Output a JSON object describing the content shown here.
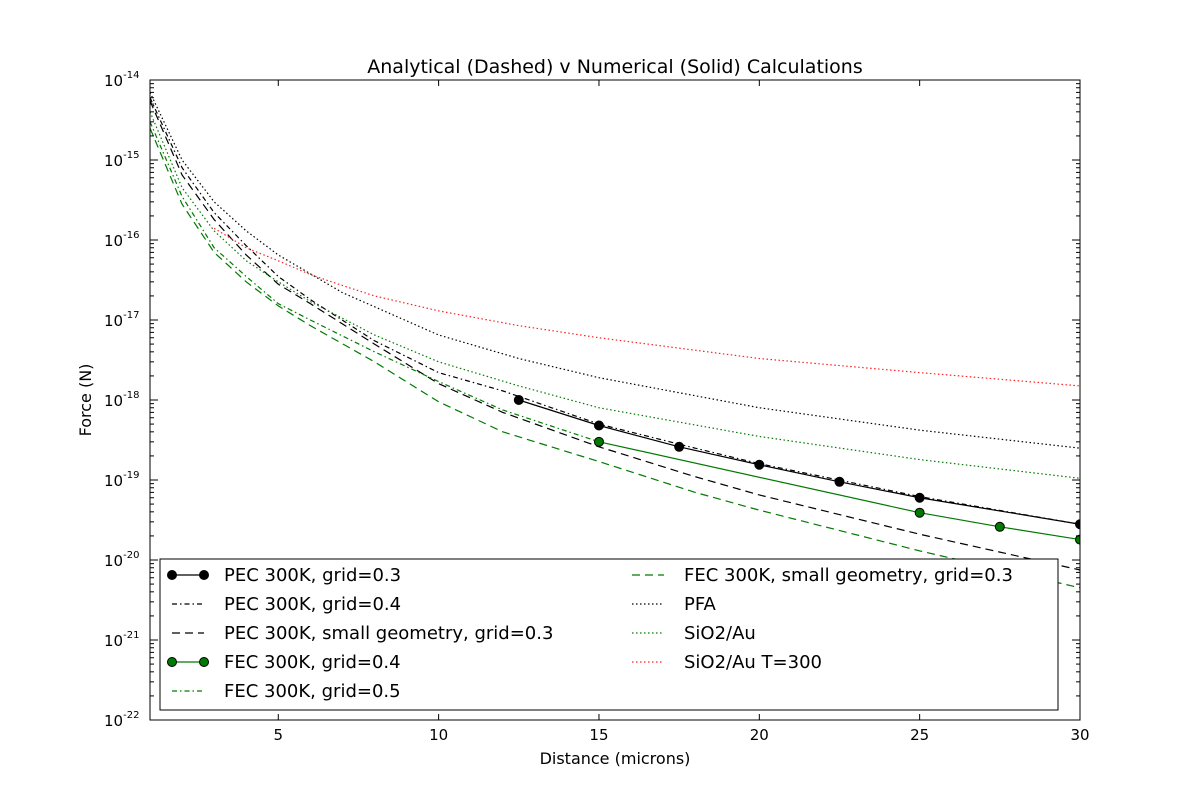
{
  "chart_data": {
    "type": "line",
    "title": "Analytical (Dashed) v Numerical (Solid) Calculations",
    "xlabel": "Distance (microns)",
    "ylabel": "Force (N)",
    "x_scale": "linear",
    "y_scale": "log",
    "xlim": [
      1,
      30
    ],
    "ylim": [
      1e-22,
      1e-14
    ],
    "x_ticks": [
      5,
      10,
      15,
      20,
      25,
      30
    ],
    "y_ticks": [
      {
        "base": "10",
        "exp": "-22",
        "value": 1e-22
      },
      {
        "base": "10",
        "exp": "-21",
        "value": 1e-21
      },
      {
        "base": "10",
        "exp": "-20",
        "value": 1e-20
      },
      {
        "base": "10",
        "exp": "-19",
        "value": 1e-19
      },
      {
        "base": "10",
        "exp": "-18",
        "value": 1e-18
      },
      {
        "base": "10",
        "exp": "-17",
        "value": 1e-17
      },
      {
        "base": "10",
        "exp": "-16",
        "value": 1e-16
      },
      {
        "base": "10",
        "exp": "-15",
        "value": 1e-15
      },
      {
        "base": "10",
        "exp": "-14",
        "value": 1e-14
      }
    ],
    "grid": false,
    "legend_position": "lower-center",
    "series": [
      {
        "name": "PEC 300K, grid=0.3",
        "color": "#000000",
        "style": "solid",
        "marker": "circle",
        "x": [
          12.5,
          15,
          17.5,
          20,
          22.5,
          25,
          30
        ],
        "y": [
          1e-18,
          4.8e-19,
          2.6e-19,
          1.55e-19,
          9.5e-20,
          6e-20,
          2.8e-20
        ]
      },
      {
        "name": "PEC 300K, grid=0.4",
        "color": "#000000",
        "style": "dashdot",
        "marker": "none",
        "x": [
          1,
          2,
          3,
          4,
          5,
          6,
          8,
          10,
          12,
          15,
          18,
          20,
          25,
          30
        ],
        "y": [
          6e-15,
          8e-16,
          2.2e-16,
          8.5e-17,
          3.5e-17,
          1.8e-17,
          5.5e-18,
          2.2e-18,
          1.3e-18,
          5e-19,
          2.5e-19,
          1.6e-19,
          6.2e-20,
          2.8e-20
        ]
      },
      {
        "name": "PEC 300K, small geometry, grid=0.3",
        "color": "#000000",
        "style": "dashed",
        "marker": "none",
        "x": [
          1,
          2,
          3,
          4,
          5,
          6,
          8,
          10,
          12,
          15,
          18,
          20,
          25,
          30
        ],
        "y": [
          5.5e-15,
          6.5e-16,
          1.8e-16,
          6.5e-17,
          2.8e-17,
          1.6e-17,
          5e-18,
          1.6e-18,
          7e-19,
          2.6e-19,
          1.1e-19,
          6.5e-20,
          2.1e-20,
          7.5e-21
        ]
      },
      {
        "name": "FEC 300K, grid=0.4",
        "color": "#007a00",
        "style": "solid",
        "marker": "circle",
        "x": [
          15,
          25,
          27.5,
          30
        ],
        "y": [
          3e-19,
          3.9e-20,
          2.6e-20,
          1.8e-20
        ]
      },
      {
        "name": "FEC 300K, grid=0.5",
        "color": "#007a00",
        "style": "dashdot",
        "marker": "none",
        "x": [
          1,
          2,
          3,
          4,
          5,
          6,
          8,
          10,
          12,
          15
        ],
        "y": [
          3e-15,
          3.5e-16,
          8e-17,
          3.5e-17,
          1.6e-17,
          1e-17,
          4e-18,
          1.7e-18,
          7.5e-19,
          3e-19
        ]
      },
      {
        "name": "FEC 300K, small geometry, grid=0.3",
        "color": "#007a00",
        "style": "dashed",
        "marker": "none",
        "x": [
          1,
          2,
          3,
          4,
          5,
          6,
          8,
          10,
          12,
          15,
          18,
          20,
          25,
          30
        ],
        "y": [
          2.5e-15,
          2.8e-16,
          7e-17,
          3e-17,
          1.5e-17,
          8.5e-18,
          3e-18,
          9.5e-19,
          4e-19,
          1.7e-19,
          7e-20,
          4.2e-20,
          1.3e-20,
          4.5e-21
        ]
      },
      {
        "name": "PFA",
        "color": "#000000",
        "style": "dotted",
        "marker": "none",
        "x": [
          1,
          2,
          3,
          4,
          5,
          7,
          10,
          12.5,
          15,
          20,
          25,
          30
        ],
        "y": [
          7e-15,
          1e-15,
          3e-16,
          1.3e-16,
          6.5e-17,
          2.2e-17,
          6.5e-18,
          3.3e-18,
          1.9e-18,
          8e-19,
          4.2e-19,
          2.5e-19
        ]
      },
      {
        "name": "SiO2/Au",
        "color": "#007a00",
        "style": "dotted",
        "marker": "none",
        "x": [
          1,
          2,
          3,
          4,
          5,
          6,
          8,
          10,
          12.5,
          15,
          20,
          25,
          30
        ],
        "y": [
          4e-15,
          4.5e-16,
          1.3e-16,
          5.5e-17,
          3e-17,
          1.7e-17,
          6.5e-18,
          3e-18,
          1.5e-18,
          8e-19,
          3.5e-19,
          1.8e-19,
          1.05e-19
        ]
      },
      {
        "name": "SiO2/Au T=300",
        "color": "#ff2020",
        "style": "dotted",
        "marker": "none",
        "x": [
          3,
          4,
          5,
          6,
          7,
          8,
          10,
          12.5,
          15,
          20,
          25,
          30
        ],
        "y": [
          1.4e-16,
          8e-17,
          5.5e-17,
          3.7e-17,
          2.7e-17,
          2e-17,
          1.3e-17,
          8.5e-18,
          6e-18,
          3.3e-18,
          2.2e-18,
          1.5e-18
        ]
      }
    ]
  }
}
